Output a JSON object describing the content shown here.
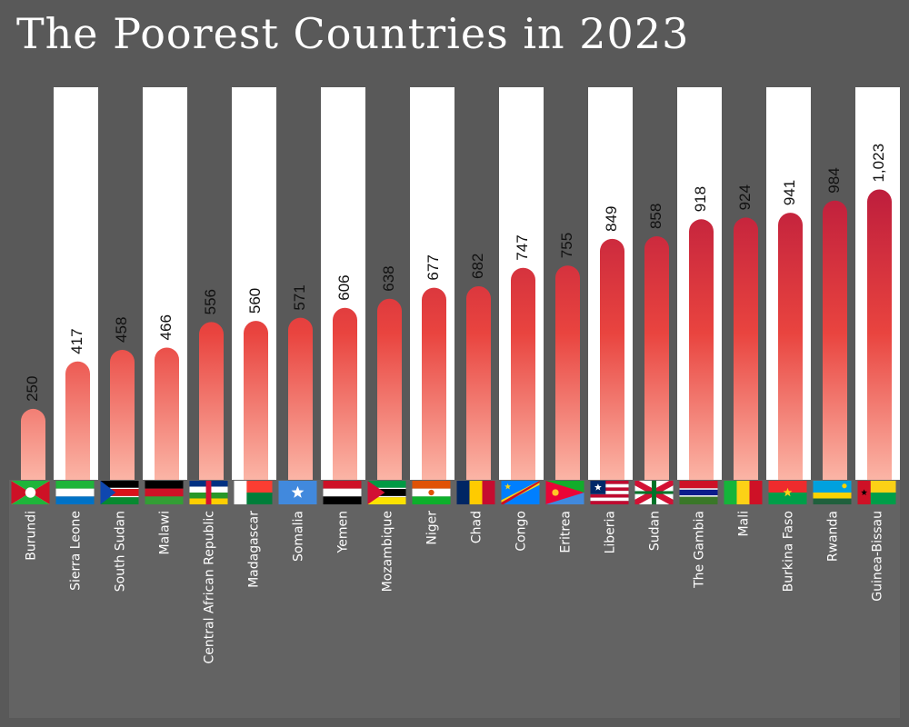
{
  "chart_data": {
    "type": "bar",
    "title": "The Poorest Countries in 2023",
    "xlabel": "",
    "ylabel": "",
    "ylim": [
      0,
      1150
    ],
    "grid": false,
    "legend": "none",
    "categories": [
      "Burundi",
      "Sierra Leone",
      "South Sudan",
      "Malawi",
      "Central African Republic",
      "Madagascar",
      "Somalia",
      "Yemen",
      "Mozambique",
      "Niger",
      "Chad",
      "Congo",
      "Eritrea",
      "Liberia",
      "Sudan",
      "The Gambia",
      "Mali",
      "Burkina Faso",
      "Rwanda",
      "Guinea-Bissau"
    ],
    "values": [
      250,
      417,
      458,
      466,
      556,
      560,
      571,
      606,
      638,
      677,
      682,
      747,
      755,
      849,
      858,
      918,
      924,
      941,
      984,
      1023
    ],
    "value_labels": [
      "250",
      "417",
      "458",
      "466",
      "556",
      "560",
      "571",
      "606",
      "638",
      "677",
      "682",
      "747",
      "755",
      "849",
      "858",
      "918",
      "924",
      "941",
      "984",
      "1,023"
    ],
    "bar_gradient": {
      "low": "#fbb5a6",
      "mid": "#e9443f",
      "high": "#b3143c"
    },
    "alternating_column_band": "#ffffff",
    "background": "#595959"
  }
}
